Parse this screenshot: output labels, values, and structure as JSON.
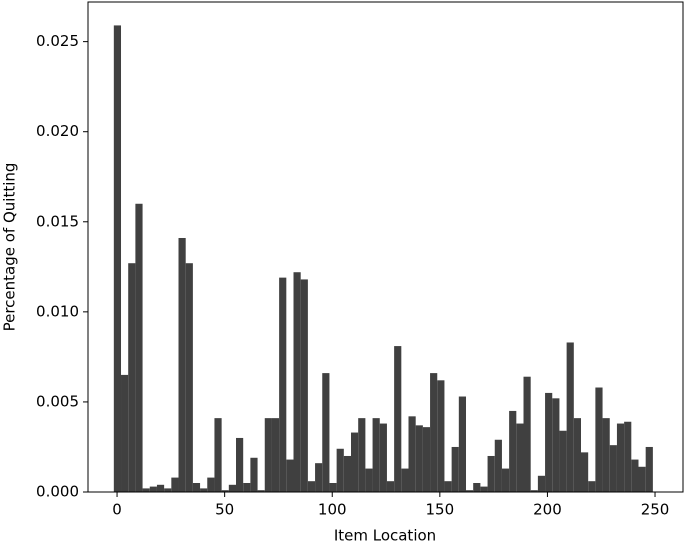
{
  "chart_data": {
    "type": "histogram",
    "x_label": "Item Location",
    "y_label": "Percentage of Quitting",
    "color": "#404040",
    "bins": [
      -1.5,
      1.84,
      5.18,
      8.52,
      11.86,
      15.2,
      18.54,
      21.88,
      25.22,
      28.56,
      31.9,
      35.24,
      38.58,
      41.92,
      45.26,
      48.6,
      51.94,
      55.28,
      58.62,
      61.96,
      65.3,
      68.64,
      71.98,
      75.32,
      78.66,
      82,
      85.34,
      88.68,
      92.02,
      95.36,
      98.7,
      102.04,
      105.38,
      108.72,
      112.06,
      115.4,
      118.74,
      122.08,
      125.42,
      128.76,
      132.1,
      135.44,
      138.78,
      142.12,
      145.46,
      148.8,
      152.14,
      155.48,
      158.82,
      162.16,
      165.5,
      168.84,
      172.18,
      175.52,
      178.86,
      182.2,
      185.54,
      188.88,
      192.22,
      195.56,
      198.9,
      202.24,
      205.58,
      208.92,
      212.26,
      215.6,
      218.94,
      222.28,
      225.62,
      228.96,
      232.3,
      235.64,
      238.98,
      242.32,
      245.66,
      249
    ],
    "values": [
      0.0259,
      0.0065,
      0.0127,
      0.016,
      0.0002,
      0.0003,
      0.0004,
      0.0002,
      0.0008,
      0.0141,
      0.0127,
      0.0005,
      0.0002,
      0.0008,
      0.0041,
      0.0001,
      0.0004,
      0.003,
      0.0005,
      0.0019,
      0.0001,
      0.0041,
      0.0041,
      0.0119,
      0.0018,
      0.0122,
      0.0118,
      0.0006,
      0.0016,
      0.0066,
      0.0005,
      0.0024,
      0.002,
      0.0033,
      0.0041,
      0.0013,
      0.0041,
      0.0038,
      0.0006,
      0.0081,
      0.0013,
      0.0042,
      0.0037,
      0.0036,
      0.0066,
      0.0062,
      0.0006,
      0.0025,
      0.0053,
      0.0001,
      0.0005,
      0.0003,
      0.002,
      0.0029,
      0.0013,
      0.0045,
      0.0038,
      0.0064,
      0.0001,
      0.0009,
      0.0055,
      0.0052,
      0.0034,
      0.0083,
      0.0041,
      0.0022,
      0.0006,
      0.0058,
      0.0041,
      0.0026,
      0.0038,
      0.0039,
      0.0018,
      0.0014,
      0.0025
    ],
    "xlim": [
      -13.5,
      263
    ],
    "ylim": [
      0,
      0.0272
    ],
    "xticks": [
      0,
      50,
      100,
      150,
      200,
      250
    ],
    "yticks": [
      {
        "value": 0,
        "label": "0.000"
      },
      {
        "value": 0.005,
        "label": "0.005"
      },
      {
        "value": 0.01,
        "label": "0.010"
      },
      {
        "value": 0.015,
        "label": "0.015"
      },
      {
        "value": 0.02,
        "label": "0.020"
      },
      {
        "value": 0.025,
        "label": "0.025"
      }
    ],
    "grid": false
  }
}
